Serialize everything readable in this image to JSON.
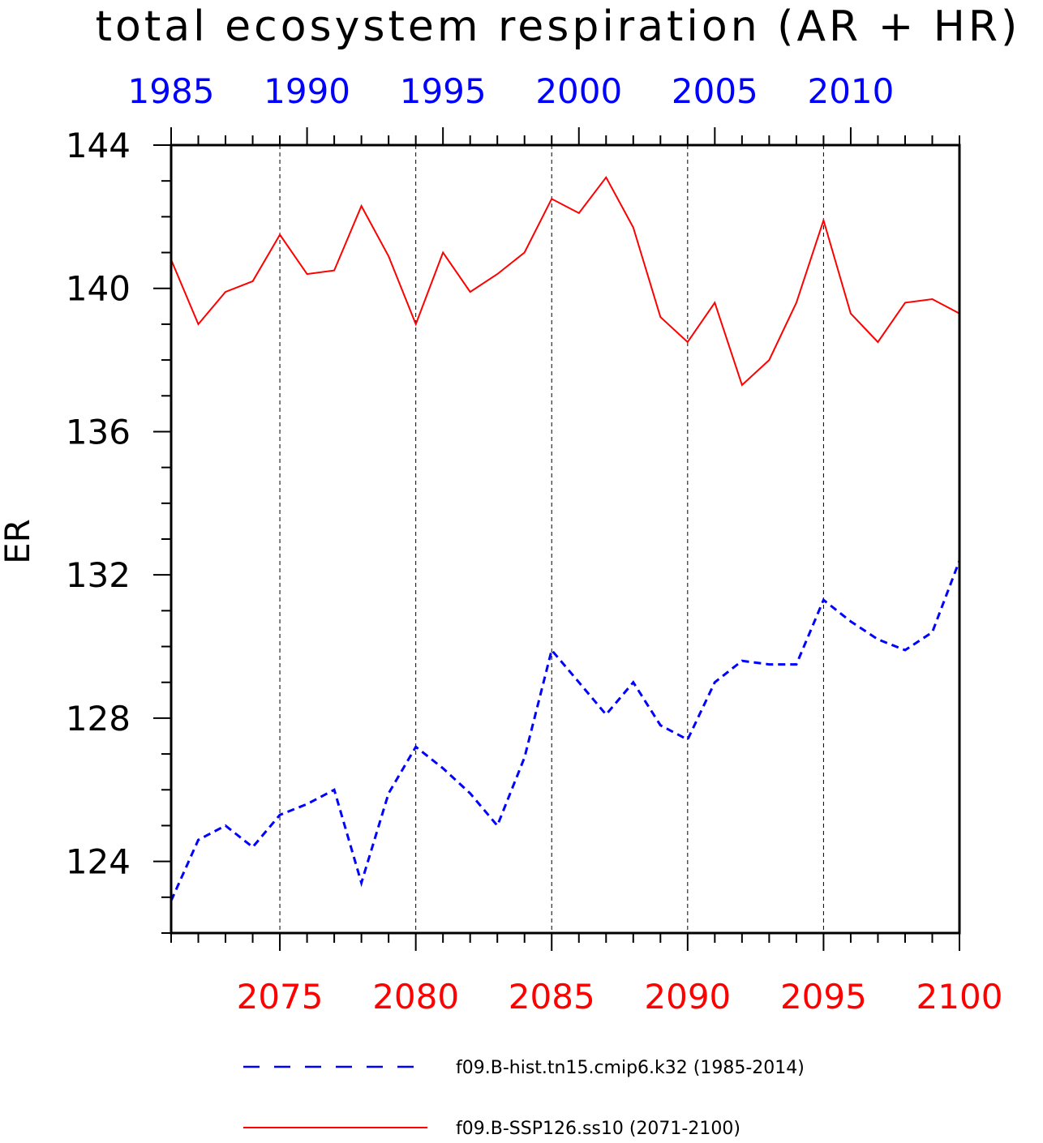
{
  "chart_data": {
    "type": "line",
    "title": "total ecosystem respiration (AR + HR)",
    "ylabel": "ER",
    "ylim": [
      122,
      144
    ],
    "yticks": [
      124,
      128,
      132,
      136,
      140,
      144
    ],
    "y_minor_step": 1,
    "grid": "vertical dashed at major x ticks",
    "legend_position": "bottom",
    "bottom_axis": {
      "range": [
        2071,
        2100
      ],
      "ticks": [
        2075,
        2080,
        2085,
        2090,
        2095,
        2100
      ],
      "color": "#ff0000"
    },
    "top_axis": {
      "range": [
        1985,
        2014
      ],
      "ticks": [
        1985,
        1990,
        1995,
        2000,
        2005,
        2010
      ],
      "color": "#0000ff"
    },
    "series": [
      {
        "name": "f09.B-hist.tn15.cmip6.k32 (1985-2014)",
        "color": "#0000ff",
        "style": "dashed",
        "axis": "top",
        "x": [
          1985,
          1986,
          1987,
          1988,
          1989,
          1990,
          1991,
          1992,
          1993,
          1994,
          1995,
          1996,
          1997,
          1998,
          1999,
          2000,
          2001,
          2002,
          2003,
          2004,
          2005,
          2006,
          2007,
          2008,
          2009,
          2010,
          2011,
          2012,
          2013,
          2014
        ],
        "values": [
          122.9,
          124.6,
          125.0,
          124.4,
          125.3,
          125.6,
          126.0,
          123.4,
          125.9,
          127.2,
          126.6,
          125.9,
          125.0,
          126.9,
          129.9,
          129.0,
          128.1,
          129.0,
          127.8,
          127.4,
          129.0,
          129.6,
          129.5,
          129.5,
          131.3,
          130.7,
          130.2,
          129.9,
          130.4,
          132.4
        ]
      },
      {
        "name": "f09.B-SSP126.ss10 (2071-2100)",
        "color": "#ff0000",
        "style": "solid",
        "axis": "bottom",
        "x": [
          2071,
          2072,
          2073,
          2074,
          2075,
          2076,
          2077,
          2078,
          2079,
          2080,
          2081,
          2082,
          2083,
          2084,
          2085,
          2086,
          2087,
          2088,
          2089,
          2090,
          2091,
          2092,
          2093,
          2094,
          2095,
          2096,
          2097,
          2098,
          2099,
          2100
        ],
        "values": [
          140.8,
          139.0,
          139.9,
          140.2,
          141.5,
          140.4,
          140.5,
          142.3,
          140.9,
          139.0,
          141.0,
          139.9,
          140.4,
          141.0,
          142.5,
          142.1,
          143.1,
          141.7,
          139.2,
          138.5,
          139.6,
          137.3,
          138.0,
          139.6,
          141.9,
          139.3,
          138.5,
          139.6,
          139.7,
          139.3
        ]
      }
    ]
  }
}
